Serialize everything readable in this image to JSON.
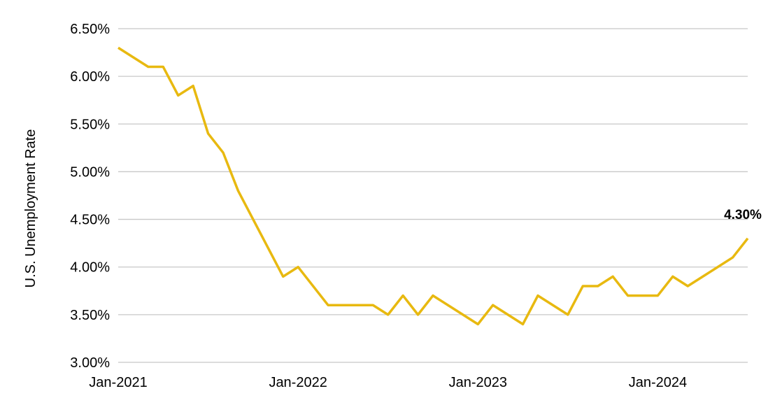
{
  "chart_data": {
    "type": "line",
    "title": "",
    "xlabel": "",
    "ylabel": "U.S. Unemployment Rate",
    "ylim": [
      3.0,
      6.5
    ],
    "y_ticks": [
      "3.00%",
      "3.50%",
      "4.00%",
      "4.50%",
      "5.00%",
      "5.50%",
      "6.00%",
      "6.50%"
    ],
    "y_tick_values": [
      3.0,
      3.5,
      4.0,
      4.5,
      5.0,
      5.5,
      6.0,
      6.5
    ],
    "x_ticks": [
      "Jan-2021",
      "Jan-2022",
      "Jan-2023",
      "Jan-2024"
    ],
    "x_range": [
      "2021-01",
      "2024-07"
    ],
    "grid": "horizontal",
    "line_color": "#E8B910",
    "x": [
      "2021-01",
      "2021-02",
      "2021-03",
      "2021-04",
      "2021-05",
      "2021-06",
      "2021-07",
      "2021-08",
      "2021-09",
      "2021-10",
      "2021-11",
      "2021-12",
      "2022-01",
      "2022-02",
      "2022-03",
      "2022-04",
      "2022-05",
      "2022-06",
      "2022-07",
      "2022-08",
      "2022-09",
      "2022-10",
      "2022-11",
      "2022-12",
      "2023-01",
      "2023-02",
      "2023-03",
      "2023-04",
      "2023-05",
      "2023-06",
      "2023-07",
      "2023-08",
      "2023-09",
      "2023-10",
      "2023-11",
      "2023-12",
      "2024-01",
      "2024-02",
      "2024-03",
      "2024-04",
      "2024-05",
      "2024-06",
      "2024-07"
    ],
    "values": [
      6.3,
      6.2,
      6.1,
      6.1,
      5.8,
      5.9,
      5.4,
      5.2,
      4.8,
      4.5,
      4.2,
      3.9,
      4.0,
      3.8,
      3.6,
      3.6,
      3.6,
      3.6,
      3.5,
      3.7,
      3.5,
      3.7,
      3.6,
      3.5,
      3.4,
      3.6,
      3.5,
      3.4,
      3.7,
      3.6,
      3.5,
      3.8,
      3.8,
      3.9,
      3.7,
      3.7,
      3.7,
      3.9,
      3.8,
      3.9,
      4.0,
      4.1,
      4.3
    ],
    "annotation": "4.30%"
  }
}
